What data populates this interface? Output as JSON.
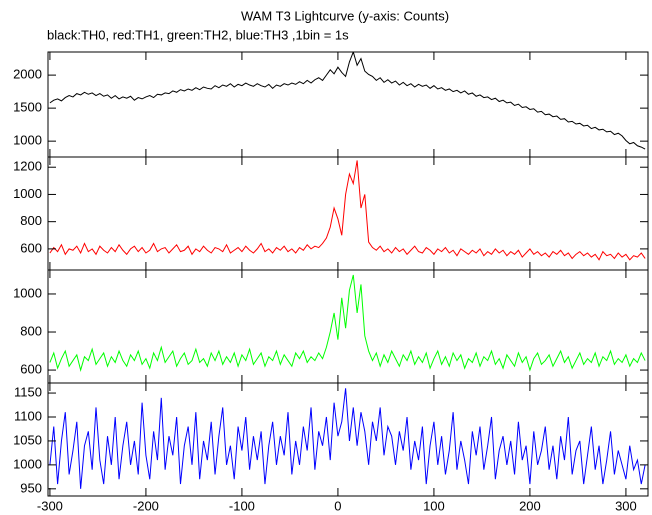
{
  "chart_data": {
    "type": "line",
    "title": "WAM T3 Lightcurve (y-axis: Counts)",
    "subtitle": "black:TH0, red:TH1, green:TH2, blue:TH3 ,1bin = 1s",
    "xlim": [
      -302,
      323
    ],
    "xticks": [
      -300,
      -200,
      -100,
      0,
      100,
      200,
      300
    ],
    "x": [
      -300,
      -296,
      -292,
      -288,
      -284,
      -280,
      -276,
      -272,
      -268,
      -264,
      -260,
      -256,
      -252,
      -248,
      -244,
      -240,
      -236,
      -232,
      -228,
      -224,
      -220,
      -216,
      -212,
      -208,
      -204,
      -200,
      -196,
      -192,
      -188,
      -184,
      -180,
      -176,
      -172,
      -168,
      -164,
      -160,
      -156,
      -152,
      -148,
      -144,
      -140,
      -136,
      -132,
      -128,
      -124,
      -120,
      -116,
      -112,
      -108,
      -104,
      -100,
      -96,
      -92,
      -88,
      -84,
      -80,
      -76,
      -72,
      -68,
      -64,
      -60,
      -56,
      -52,
      -48,
      -44,
      -40,
      -36,
      -32,
      -28,
      -24,
      -20,
      -16,
      -12,
      -8,
      -4,
      0,
      4,
      8,
      12,
      16,
      20,
      24,
      28,
      32,
      36,
      40,
      44,
      48,
      52,
      56,
      60,
      64,
      68,
      72,
      76,
      80,
      84,
      88,
      92,
      96,
      100,
      104,
      108,
      112,
      116,
      120,
      124,
      128,
      132,
      136,
      140,
      144,
      148,
      152,
      156,
      160,
      164,
      168,
      172,
      176,
      180,
      184,
      188,
      192,
      196,
      200,
      204,
      208,
      212,
      216,
      220,
      224,
      228,
      232,
      236,
      240,
      244,
      248,
      252,
      256,
      260,
      264,
      268,
      272,
      276,
      280,
      284,
      288,
      292,
      296,
      300,
      304,
      308,
      312,
      316,
      320
    ],
    "series": [
      {
        "color": "#000000",
        "ylim": [
          760,
          2350
        ],
        "yticks": [
          1000,
          1500,
          2000
        ],
        "values": [
          1580,
          1620,
          1640,
          1610,
          1660,
          1690,
          1670,
          1720,
          1700,
          1740,
          1710,
          1730,
          1690,
          1720,
          1680,
          1700,
          1650,
          1690,
          1640,
          1670,
          1650,
          1680,
          1620,
          1660,
          1640,
          1670,
          1690,
          1660,
          1710,
          1700,
          1730,
          1720,
          1760,
          1740,
          1780,
          1760,
          1790,
          1770,
          1810,
          1780,
          1820,
          1800,
          1790,
          1840,
          1810,
          1850,
          1830,
          1870,
          1820,
          1860,
          1840,
          1880,
          1850,
          1830,
          1870,
          1840,
          1820,
          1860,
          1800,
          1850,
          1830,
          1870,
          1850,
          1880,
          1860,
          1900,
          1870,
          1920,
          1880,
          1930,
          1960,
          1920,
          2000,
          2080,
          2020,
          2120,
          2040,
          1980,
          2200,
          2350,
          2150,
          2250,
          2060,
          2010,
          1980,
          1920,
          1960,
          1890,
          1930,
          1880,
          1910,
          1850,
          1890,
          1840,
          1870,
          1820,
          1860,
          1830,
          1850,
          1800,
          1840,
          1790,
          1810,
          1770,
          1790,
          1750,
          1770,
          1730,
          1760,
          1710,
          1730,
          1680,
          1700,
          1660,
          1670,
          1630,
          1650,
          1600,
          1620,
          1580,
          1590,
          1540,
          1560,
          1510,
          1520,
          1480,
          1490,
          1440,
          1450,
          1400,
          1410,
          1370,
          1380,
          1330,
          1340,
          1290,
          1300,
          1260,
          1270,
          1230,
          1240,
          1190,
          1210,
          1170,
          1180,
          1140,
          1150,
          1100,
          1120,
          1080,
          1010,
          960,
          980,
          930,
          910,
          880
        ]
      },
      {
        "color": "#ff0000",
        "ylim": [
          445,
          1275
        ],
        "yticks": [
          600,
          800,
          1000,
          1200
        ],
        "values": [
          570,
          610,
          580,
          630,
          560,
          600,
          590,
          620,
          570,
          640,
          580,
          600,
          560,
          620,
          590,
          570,
          610,
          580,
          630,
          590,
          560,
          600,
          620,
          580,
          610,
          570,
          590,
          640,
          580,
          600,
          610,
          570,
          600,
          630,
          580,
          590,
          620,
          560,
          600,
          580,
          620,
          590,
          570,
          610,
          600,
          580,
          630,
          570,
          590,
          610,
          580,
          620,
          590,
          570,
          600,
          640,
          580,
          600,
          570,
          610,
          590,
          620,
          580,
          600,
          570,
          610,
          590,
          630,
          600,
          620,
          610,
          640,
          680,
          760,
          900,
          820,
          700,
          1000,
          1150,
          1080,
          1250,
          900,
          1000,
          650,
          610,
          590,
          620,
          580,
          600,
          570,
          610,
          580,
          600,
          560,
          590,
          620,
          580,
          570,
          610,
          590,
          560,
          600,
          580,
          610,
          570,
          590,
          550,
          600,
          580,
          560,
          590,
          570,
          600,
          550,
          580,
          560,
          600,
          570,
          590,
          550,
          580,
          560,
          590,
          540,
          570,
          600,
          560,
          580,
          550,
          570,
          540,
          580,
          560,
          590,
          550,
          570,
          530,
          560,
          580,
          550,
          570,
          540,
          560,
          520,
          580,
          550,
          560,
          530,
          570,
          540,
          560,
          520,
          550,
          540,
          570,
          530
        ]
      },
      {
        "color": "#00ff00",
        "ylim": [
          532,
          1126
        ],
        "yticks": [
          600,
          800,
          1000
        ],
        "values": [
          640,
          690,
          610,
          660,
          700,
          620,
          650,
          680,
          600,
          670,
          650,
          710,
          630,
          660,
          690,
          620,
          670,
          640,
          700,
          650,
          620,
          680,
          650,
          700,
          630,
          660,
          610,
          690,
          650,
          720,
          640,
          670,
          700,
          620,
          660,
          690,
          630,
          650,
          710,
          640,
          660,
          620,
          690,
          650,
          700,
          630,
          670,
          640,
          690,
          620,
          680,
          650,
          710,
          630,
          660,
          690,
          620,
          670,
          650,
          700,
          630,
          680,
          650,
          620,
          690,
          660,
          700,
          640,
          670,
          650,
          690,
          660,
          720,
          800,
          900,
          760,
          980,
          820,
          1020,
          1100,
          900,
          1050,
          780,
          700,
          650,
          690,
          620,
          680,
          640,
          700,
          660,
          620,
          680,
          650,
          700,
          630,
          670,
          640,
          690,
          610,
          660,
          700,
          630,
          670,
          620,
          690,
          650,
          680,
          610,
          660,
          640,
          690,
          620,
          670,
          650,
          700,
          630,
          660,
          610,
          680,
          650,
          620,
          690,
          640,
          670,
          600,
          660,
          690,
          630,
          650,
          680,
          620,
          660,
          700,
          640,
          670,
          610,
          650,
          690,
          630,
          660,
          640,
          690,
          620,
          670,
          650,
          700,
          630,
          660,
          640,
          680,
          620,
          660,
          640,
          690,
          650
        ]
      },
      {
        "color": "#0000ff",
        "ylim": [
          935,
          1171
        ],
        "yticks": [
          950,
          1000,
          1050,
          1100,
          1150
        ],
        "values": [
          1000,
          1080,
          960,
          1050,
          1110,
          980,
          1030,
          1090,
          950,
          1040,
          1070,
          990,
          1120,
          1010,
          960,
          1060,
          1000,
          1100,
          970,
          1040,
          1090,
          1000,
          1050,
          980,
          1130,
          1020,
          970,
          1070,
          1010,
          1140,
          990,
          1060,
          1020,
          1100,
          960,
          1040,
          1080,
          1000,
          1110,
          970,
          1050,
          1010,
          1090,
          980,
          1060,
          1120,
          1000,
          1040,
          970,
          1080,
          1030,
          1100,
          990,
          1060,
          1010,
          1070,
          960,
          1040,
          1090,
          1000,
          1060,
          1020,
          1110,
          980,
          1050,
          1000,
          1080,
          1030,
          1120,
          990,
          1070,
          1040,
          1100,
          1010,
          1130,
          1060,
          1090,
          1160,
          1050,
          1120,
          1040,
          1110,
          1070,
          1000,
          1090,
          1050,
          1120,
          1020,
          1080,
          1060,
          1000,
          1070,
          1030,
          1100,
          990,
          1050,
          1010,
          1080,
          960,
          1040,
          1090,
          1000,
          1060,
          980,
          1030,
          1110,
          990,
          1050,
          1010,
          960,
          1070,
          1020,
          1080,
          990,
          1040,
          1100,
          970,
          1030,
          1060,
          1000,
          1050,
          980,
          1090,
          1010,
          1040,
          960,
          1070,
          1000,
          1030,
          1080,
          990,
          1040,
          970,
          1060,
          1010,
          1100,
          980,
          1030,
          1050,
          960,
          1020,
          1080,
          990,
          1040,
          960,
          1010,
          1070,
          980,
          1030,
          1000,
          970,
          1040,
          990,
          1010,
          960,
          1000
        ]
      }
    ]
  }
}
